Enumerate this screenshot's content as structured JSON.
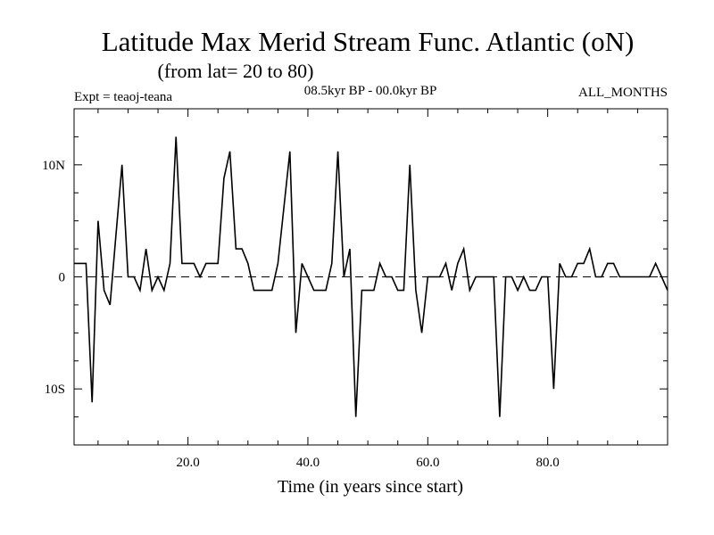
{
  "chart_data": {
    "type": "line",
    "title": "Latitude Max Merid Stream Func. Atlantic (oN)",
    "subtitle": "(from lat= 20 to 80)",
    "left_label": "Expt = teaoj-teana",
    "center_label": "08.5kyr BP - 00.0kyr BP",
    "right_label": "ALL_MONTHS",
    "xlabel": "Time (in years since start)",
    "ylabel": "",
    "xlim": [
      1,
      100
    ],
    "ylim": [
      -15,
      15
    ],
    "x_ticks": [
      20,
      40,
      60,
      80
    ],
    "x_tick_labels": [
      "20.0",
      "40.0",
      "60.0",
      "80.0"
    ],
    "y_ticks": [
      -10,
      0,
      10
    ],
    "y_tick_labels": [
      "10S",
      "0",
      "10N"
    ],
    "reference_line_y": 0,
    "x": [
      1,
      2,
      3,
      4,
      5,
      6,
      7,
      8,
      9,
      10,
      11,
      12,
      13,
      14,
      15,
      16,
      17,
      18,
      19,
      20,
      21,
      22,
      23,
      24,
      25,
      26,
      27,
      28,
      29,
      30,
      31,
      32,
      33,
      34,
      35,
      36,
      37,
      38,
      39,
      40,
      41,
      42,
      43,
      44,
      45,
      46,
      47,
      48,
      49,
      50,
      51,
      52,
      53,
      54,
      55,
      56,
      57,
      58,
      59,
      60,
      61,
      62,
      63,
      64,
      65,
      66,
      67,
      68,
      69,
      70,
      71,
      72,
      73,
      74,
      75,
      76,
      77,
      78,
      79,
      80,
      81,
      82,
      83,
      84,
      85,
      86,
      87,
      88,
      89,
      90,
      91,
      92,
      93,
      94,
      95,
      96,
      97,
      98,
      99,
      100
    ],
    "series": [
      {
        "name": "teaoj-teana",
        "values": [
          1.2,
          1.2,
          1.2,
          -11.2,
          5.0,
          -1.2,
          -2.5,
          3.8,
          10.0,
          0.0,
          0.0,
          -1.2,
          2.5,
          -1.2,
          0.0,
          -1.2,
          1.2,
          12.5,
          1.2,
          1.2,
          1.2,
          0.0,
          1.2,
          1.2,
          1.2,
          8.8,
          11.2,
          2.5,
          2.5,
          1.2,
          -1.2,
          -1.2,
          -1.2,
          -1.2,
          1.2,
          6.2,
          11.2,
          -5.0,
          1.2,
          0.0,
          -1.2,
          -1.2,
          -1.2,
          1.2,
          11.2,
          0.0,
          2.5,
          -12.5,
          -1.2,
          -1.2,
          -1.2,
          1.2,
          0.0,
          0.0,
          -1.2,
          -1.2,
          10.0,
          -1.2,
          -5.0,
          0.0,
          0.0,
          0.0,
          1.2,
          -1.2,
          1.2,
          2.5,
          -1.2,
          0.0,
          0.0,
          0.0,
          0.0,
          -12.5,
          0.0,
          0.0,
          -1.2,
          0.0,
          -1.2,
          -1.2,
          0.0,
          0.0,
          -10.0,
          1.2,
          0.0,
          0.0,
          1.2,
          1.2,
          2.5,
          0.0,
          0.0,
          1.2,
          1.2,
          0.0,
          0.0,
          0.0,
          0.0,
          0.0,
          0.0,
          1.2,
          0.0,
          -1.2
        ]
      }
    ]
  }
}
